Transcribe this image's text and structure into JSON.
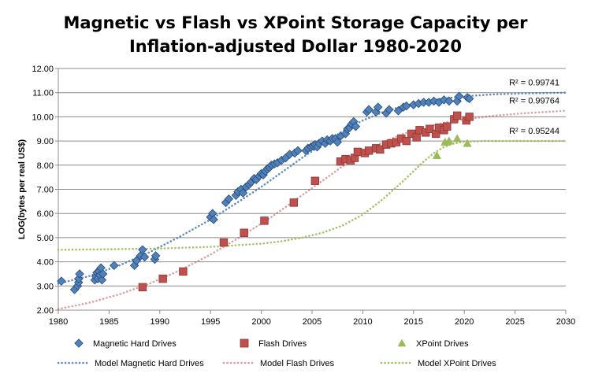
{
  "chart_data": {
    "type": "scatter",
    "title_line1": "Magnetic vs Flash vs XPoint Storage Capacity per",
    "title_line2": "Inflation-adjusted Dollar 1980-2020",
    "xlabel": "",
    "ylabel": "LOG(bytes per real US$)",
    "xlim": [
      1980,
      2030
    ],
    "ylim": [
      2.0,
      12.0
    ],
    "x_ticks": [
      "1980",
      "1985",
      "1990",
      "1995",
      "2000",
      "2005",
      "2010",
      "2015",
      "2020",
      "2025",
      "2030"
    ],
    "y_ticks": [
      "2.00",
      "3.00",
      "4.00",
      "5.00",
      "6.00",
      "7.00",
      "8.00",
      "9.00",
      "10.00",
      "11.00",
      "12.00"
    ],
    "grid": "horizontal",
    "legend_position": "bottom",
    "series": [
      {
        "name": "Magnetic Hard Drives",
        "marker": "diamond",
        "color": "#4f81bd",
        "points": [
          [
            1980.3,
            3.2
          ],
          [
            1981.6,
            2.85
          ],
          [
            1981.9,
            3.0
          ],
          [
            1982.0,
            3.15
          ],
          [
            1982.0,
            3.3
          ],
          [
            1982.1,
            3.5
          ],
          [
            1983.6,
            3.25
          ],
          [
            1983.7,
            3.4
          ],
          [
            1983.8,
            3.55
          ],
          [
            1983.9,
            3.3
          ],
          [
            1984.0,
            3.6
          ],
          [
            1984.1,
            3.45
          ],
          [
            1984.2,
            3.75
          ],
          [
            1984.3,
            3.25
          ],
          [
            1984.4,
            3.5
          ],
          [
            1985.5,
            3.85
          ],
          [
            1987.5,
            3.85
          ],
          [
            1987.7,
            4.05
          ],
          [
            1988.1,
            4.25
          ],
          [
            1988.3,
            4.5
          ],
          [
            1988.5,
            4.2
          ],
          [
            1989.5,
            4.1
          ],
          [
            1989.6,
            4.25
          ],
          [
            1995.0,
            5.85
          ],
          [
            1995.2,
            6.0
          ],
          [
            1995.3,
            5.75
          ],
          [
            1996.5,
            6.45
          ],
          [
            1996.8,
            6.6
          ],
          [
            1997.5,
            6.75
          ],
          [
            1997.7,
            6.9
          ],
          [
            1998.0,
            7.0
          ],
          [
            1998.2,
            6.85
          ],
          [
            1998.5,
            7.1
          ],
          [
            1998.8,
            7.2
          ],
          [
            1999.0,
            7.3
          ],
          [
            1999.3,
            7.45
          ],
          [
            1999.5,
            7.4
          ],
          [
            1999.8,
            7.55
          ],
          [
            2000.0,
            7.65
          ],
          [
            2000.2,
            7.6
          ],
          [
            2000.4,
            7.75
          ],
          [
            2000.6,
            7.85
          ],
          [
            2000.8,
            7.9
          ],
          [
            2001.0,
            8.0
          ],
          [
            2001.3,
            8.05
          ],
          [
            2001.6,
            8.1
          ],
          [
            2002.0,
            8.2
          ],
          [
            2002.4,
            8.3
          ],
          [
            2002.8,
            8.45
          ],
          [
            2003.3,
            8.5
          ],
          [
            2003.6,
            8.6
          ],
          [
            2004.4,
            8.6
          ],
          [
            2004.6,
            8.7
          ],
          [
            2004.9,
            8.75
          ],
          [
            2005.1,
            8.8
          ],
          [
            2005.3,
            8.85
          ],
          [
            2005.5,
            8.75
          ],
          [
            2005.7,
            8.9
          ],
          [
            2006.0,
            9.0
          ],
          [
            2006.3,
            8.9
          ],
          [
            2006.5,
            9.05
          ],
          [
            2006.8,
            9.0
          ],
          [
            2007.0,
            9.1
          ],
          [
            2007.3,
            9.1
          ],
          [
            2007.5,
            8.95
          ],
          [
            2007.8,
            9.2
          ],
          [
            2008.3,
            9.3
          ],
          [
            2008.5,
            9.5
          ],
          [
            2008.7,
            9.55
          ],
          [
            2008.9,
            9.7
          ],
          [
            2009.1,
            9.8
          ],
          [
            2009.3,
            9.6
          ],
          [
            2010.4,
            10.2
          ],
          [
            2010.6,
            10.3
          ],
          [
            2011.3,
            10.2
          ],
          [
            2011.5,
            10.4
          ],
          [
            2012.3,
            10.15
          ],
          [
            2012.6,
            10.3
          ],
          [
            2013.5,
            10.25
          ],
          [
            2014.0,
            10.4
          ],
          [
            2014.3,
            10.45
          ],
          [
            2015.0,
            10.5
          ],
          [
            2015.5,
            10.55
          ],
          [
            2016.0,
            10.6
          ],
          [
            2016.5,
            10.6
          ],
          [
            2017.0,
            10.65
          ],
          [
            2017.5,
            10.6
          ],
          [
            2018.0,
            10.7
          ],
          [
            2018.5,
            10.65
          ],
          [
            2019.3,
            10.65
          ],
          [
            2019.5,
            10.85
          ],
          [
            2020.3,
            10.8
          ],
          [
            2020.5,
            10.75
          ]
        ]
      },
      {
        "name": "Flash Drives",
        "marker": "square",
        "color": "#c0504d",
        "points": [
          [
            1988.3,
            2.95
          ],
          [
            1990.3,
            3.3
          ],
          [
            1992.3,
            3.6
          ],
          [
            1996.3,
            4.8
          ],
          [
            1998.3,
            5.2
          ],
          [
            2000.3,
            5.7
          ],
          [
            2003.2,
            6.45
          ],
          [
            2005.3,
            7.35
          ],
          [
            2007.8,
            8.15
          ],
          [
            2008.3,
            8.25
          ],
          [
            2008.8,
            8.2
          ],
          [
            2009.2,
            8.3
          ],
          [
            2009.5,
            8.55
          ],
          [
            2010.2,
            8.5
          ],
          [
            2010.6,
            8.6
          ],
          [
            2011.3,
            8.7
          ],
          [
            2011.7,
            8.65
          ],
          [
            2012.3,
            8.85
          ],
          [
            2012.8,
            8.9
          ],
          [
            2013.3,
            8.95
          ],
          [
            2013.8,
            9.1
          ],
          [
            2014.3,
            9.0
          ],
          [
            2014.8,
            9.3
          ],
          [
            2015.3,
            9.15
          ],
          [
            2015.6,
            9.45
          ],
          [
            2016.2,
            9.35
          ],
          [
            2016.6,
            9.5
          ],
          [
            2017.2,
            9.3
          ],
          [
            2017.5,
            9.55
          ],
          [
            2018.0,
            9.45
          ],
          [
            2018.3,
            9.6
          ],
          [
            2019.0,
            9.9
          ],
          [
            2019.3,
            10.05
          ],
          [
            2020.2,
            9.85
          ],
          [
            2020.5,
            10.0
          ]
        ]
      },
      {
        "name": "XPoint Drives",
        "marker": "triangle",
        "color": "#9bbb59",
        "points": [
          [
            2017.3,
            8.4
          ],
          [
            2018.1,
            8.95
          ],
          [
            2018.5,
            9.0
          ],
          [
            2019.3,
            9.1
          ],
          [
            2020.3,
            8.9
          ]
        ]
      }
    ],
    "models": [
      {
        "name": "Model Magnetic Hard Drives",
        "color": "#4f81bd",
        "label": "R² = 0.99741",
        "r_squared": 0.99741,
        "curve": [
          [
            1980,
            3.1
          ],
          [
            1983,
            3.4
          ],
          [
            1986,
            3.85
          ],
          [
            1989,
            4.4
          ],
          [
            1992,
            5.05
          ],
          [
            1995,
            5.75
          ],
          [
            1998,
            6.55
          ],
          [
            2000,
            7.1
          ],
          [
            2002,
            7.7
          ],
          [
            2004,
            8.3
          ],
          [
            2006,
            8.85
          ],
          [
            2008,
            9.4
          ],
          [
            2010,
            9.85
          ],
          [
            2012,
            10.2
          ],
          [
            2014,
            10.45
          ],
          [
            2016,
            10.63
          ],
          [
            2018,
            10.76
          ],
          [
            2020,
            10.85
          ],
          [
            2023,
            10.93
          ],
          [
            2026,
            10.97
          ],
          [
            2030,
            11.0
          ]
        ]
      },
      {
        "name": "Model Flash Drives",
        "color": "#c0504d",
        "label": "R² = 0.99764",
        "r_squared": 0.99764,
        "curve": [
          [
            1980,
            2.05
          ],
          [
            1983,
            2.3
          ],
          [
            1986,
            2.65
          ],
          [
            1989,
            3.1
          ],
          [
            1992,
            3.65
          ],
          [
            1995,
            4.3
          ],
          [
            1998,
            5.05
          ],
          [
            2001,
            5.85
          ],
          [
            2004,
            6.75
          ],
          [
            2006,
            7.35
          ],
          [
            2008,
            7.95
          ],
          [
            2010,
            8.5
          ],
          [
            2012,
            8.95
          ],
          [
            2014,
            9.3
          ],
          [
            2016,
            9.55
          ],
          [
            2018,
            9.75
          ],
          [
            2020,
            9.9
          ],
          [
            2023,
            10.05
          ],
          [
            2026,
            10.15
          ],
          [
            2030,
            10.25
          ]
        ]
      },
      {
        "name": "Model XPoint Drives",
        "color": "#9bbb59",
        "label": "R² = 0.95244",
        "r_squared": 0.95244,
        "curve": [
          [
            1980,
            4.5
          ],
          [
            1985,
            4.52
          ],
          [
            1990,
            4.55
          ],
          [
            1995,
            4.62
          ],
          [
            2000,
            4.75
          ],
          [
            2002,
            4.85
          ],
          [
            2004,
            5.0
          ],
          [
            2006,
            5.2
          ],
          [
            2008,
            5.5
          ],
          [
            2010,
            5.95
          ],
          [
            2012,
            6.6
          ],
          [
            2014,
            7.35
          ],
          [
            2016,
            8.15
          ],
          [
            2017,
            8.5
          ],
          [
            2018,
            8.75
          ],
          [
            2019,
            8.9
          ],
          [
            2020,
            8.97
          ],
          [
            2022,
            9.0
          ],
          [
            2026,
            9.0
          ],
          [
            2030,
            9.0
          ]
        ]
      }
    ]
  }
}
